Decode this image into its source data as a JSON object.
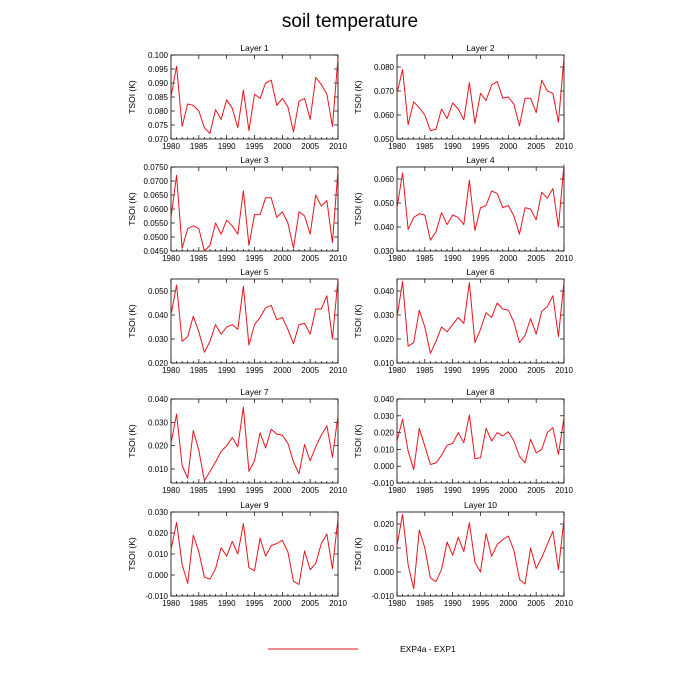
{
  "title": "soil temperature",
  "legend": {
    "label": "EXP4a - EXP1",
    "color": "#e8141c"
  },
  "x_ticks": [
    1980,
    1985,
    1990,
    1995,
    2000,
    2005,
    2010
  ],
  "chart_data": [
    {
      "type": "line",
      "title": "Layer 1",
      "ylabel": "TSOI  (K)",
      "xlim": [
        1980,
        2010
      ],
      "ylim": [
        0.07,
        0.1
      ],
      "yticks": [
        "0.070",
        "0.075",
        "0.080",
        "0.085",
        "0.090",
        "0.095",
        "0.100"
      ],
      "x": [
        1980,
        1981,
        1982,
        1983,
        1984,
        1985,
        1986,
        1987,
        1988,
        1989,
        1990,
        1991,
        1992,
        1993,
        1994,
        1995,
        1996,
        1997,
        1998,
        1999,
        2000,
        2001,
        2002,
        2003,
        2004,
        2005,
        2006,
        2007,
        2008,
        2009,
        2010
      ],
      "series": [
        {
          "values": [
            0.085,
            0.096,
            0.0745,
            0.0825,
            0.082,
            0.08,
            0.074,
            0.072,
            0.0805,
            0.077,
            0.084,
            0.081,
            0.074,
            0.0875,
            0.073,
            0.086,
            0.0845,
            0.09,
            0.091,
            0.082,
            0.0845,
            0.0815,
            0.0725,
            0.0835,
            0.0845,
            0.077,
            0.092,
            0.0895,
            0.086,
            0.0745,
            0.099
          ]
        }
      ]
    },
    {
      "type": "line",
      "title": "Layer 2",
      "ylabel": "TSOI  (K)",
      "xlim": [
        1980,
        2010
      ],
      "ylim": [
        0.05,
        0.085
      ],
      "yticks": [
        "0.050",
        "0.060",
        "0.070",
        "0.080"
      ],
      "x": [
        1980,
        1981,
        1982,
        1983,
        1984,
        1985,
        1986,
        1987,
        1988,
        1989,
        1990,
        1991,
        1992,
        1993,
        1994,
        1995,
        1996,
        1997,
        1998,
        1999,
        2000,
        2001,
        2002,
        2003,
        2004,
        2005,
        2006,
        2007,
        2008,
        2009,
        2010
      ],
      "series": [
        {
          "values": [
            0.069,
            0.079,
            0.056,
            0.0655,
            0.063,
            0.06,
            0.0535,
            0.054,
            0.0625,
            0.0585,
            0.065,
            0.0625,
            0.058,
            0.0735,
            0.0565,
            0.069,
            0.066,
            0.0725,
            0.074,
            0.067,
            0.0675,
            0.0645,
            0.0555,
            0.067,
            0.067,
            0.061,
            0.0745,
            0.07,
            0.069,
            0.057,
            0.084
          ]
        }
      ]
    },
    {
      "type": "line",
      "title": "Layer 3",
      "ylabel": "TSOI  (K)",
      "xlim": [
        1980,
        2010
      ],
      "ylim": [
        0.045,
        0.075
      ],
      "yticks": [
        "0.0450",
        "0.0500",
        "0.0550",
        "0.0600",
        "0.0650",
        "0.0700",
        "0.0750"
      ],
      "x": [
        1980,
        1981,
        1982,
        1983,
        1984,
        1985,
        1986,
        1987,
        1988,
        1989,
        1990,
        1991,
        1992,
        1993,
        1994,
        1995,
        1996,
        1997,
        1998,
        1999,
        2000,
        2001,
        2002,
        2003,
        2004,
        2005,
        2006,
        2007,
        2008,
        2009,
        2010
      ],
      "series": [
        {
          "values": [
            0.057,
            0.072,
            0.046,
            0.053,
            0.054,
            0.053,
            0.045,
            0.047,
            0.055,
            0.051,
            0.056,
            0.054,
            0.051,
            0.0665,
            0.047,
            0.058,
            0.058,
            0.064,
            0.064,
            0.057,
            0.059,
            0.055,
            0.046,
            0.059,
            0.0575,
            0.051,
            0.065,
            0.061,
            0.063,
            0.048,
            0.074
          ]
        }
      ]
    },
    {
      "type": "line",
      "title": "Layer 4",
      "ylabel": "TSOI  (K)",
      "xlim": [
        1980,
        2010
      ],
      "ylim": [
        0.03,
        0.065
      ],
      "yticks": [
        "0.030",
        "0.040",
        "0.050",
        "0.060"
      ],
      "x": [
        1980,
        1981,
        1982,
        1983,
        1984,
        1985,
        1986,
        1987,
        1988,
        1989,
        1990,
        1991,
        1992,
        1993,
        1994,
        1995,
        1996,
        1997,
        1998,
        1999,
        2000,
        2001,
        2002,
        2003,
        2004,
        2005,
        2006,
        2007,
        2008,
        2009,
        2010
      ],
      "series": [
        {
          "values": [
            0.048,
            0.0625,
            0.039,
            0.044,
            0.0455,
            0.045,
            0.0345,
            0.038,
            0.046,
            0.041,
            0.045,
            0.044,
            0.041,
            0.0595,
            0.0385,
            0.048,
            0.049,
            0.055,
            0.054,
            0.048,
            0.049,
            0.0445,
            0.037,
            0.048,
            0.0475,
            0.043,
            0.0545,
            0.052,
            0.056,
            0.04,
            0.066
          ]
        }
      ]
    },
    {
      "type": "line",
      "title": "Layer 5",
      "ylabel": "TSOI  (K)",
      "xlim": [
        1980,
        2010
      ],
      "ylim": [
        0.02,
        0.055
      ],
      "yticks": [
        "0.020",
        "0.030",
        "0.040",
        "0.050"
      ],
      "x": [
        1980,
        1981,
        1982,
        1983,
        1984,
        1985,
        1986,
        1987,
        1988,
        1989,
        1990,
        1991,
        1992,
        1993,
        1994,
        1995,
        1996,
        1997,
        1998,
        1999,
        2000,
        2001,
        2002,
        2003,
        2004,
        2005,
        2006,
        2007,
        2008,
        2009,
        2010
      ],
      "series": [
        {
          "values": [
            0.04,
            0.0525,
            0.029,
            0.031,
            0.0395,
            0.033,
            0.0245,
            0.029,
            0.036,
            0.032,
            0.035,
            0.036,
            0.034,
            0.052,
            0.0275,
            0.036,
            0.039,
            0.043,
            0.044,
            0.038,
            0.039,
            0.034,
            0.028,
            0.036,
            0.0365,
            0.032,
            0.0425,
            0.0425,
            0.048,
            0.03,
            0.055
          ]
        }
      ]
    },
    {
      "type": "line",
      "title": "Layer 6",
      "ylabel": "TSOI  (K)",
      "xlim": [
        1980,
        2010
      ],
      "ylim": [
        0.01,
        0.045
      ],
      "yticks": [
        "0.010",
        "0.020",
        "0.030",
        "0.040"
      ],
      "x": [
        1980,
        1981,
        1982,
        1983,
        1984,
        1985,
        1986,
        1987,
        1988,
        1989,
        1990,
        1991,
        1992,
        1993,
        1994,
        1995,
        1996,
        1997,
        1998,
        1999,
        2000,
        2001,
        2002,
        2003,
        2004,
        2005,
        2006,
        2007,
        2008,
        2009,
        2010
      ],
      "series": [
        {
          "values": [
            0.029,
            0.044,
            0.017,
            0.0185,
            0.032,
            0.025,
            0.014,
            0.019,
            0.025,
            0.023,
            0.026,
            0.029,
            0.0265,
            0.0435,
            0.0185,
            0.024,
            0.031,
            0.029,
            0.035,
            0.0325,
            0.032,
            0.027,
            0.0185,
            0.0215,
            0.0285,
            0.022,
            0.0315,
            0.0335,
            0.038,
            0.021,
            0.044
          ]
        }
      ]
    },
    {
      "type": "line",
      "title": "Layer 7",
      "ylabel": "TSOI  (K)",
      "xlim": [
        1980,
        2010
      ],
      "ylim": [
        0.004,
        0.04
      ],
      "yticks": [
        "0.010",
        "0.020",
        "0.030",
        "0.040"
      ],
      "x": [
        1980,
        1981,
        1982,
        1983,
        1984,
        1985,
        1986,
        1987,
        1988,
        1989,
        1990,
        1991,
        1992,
        1993,
        1994,
        1995,
        1996,
        1997,
        1998,
        1999,
        2000,
        2001,
        2002,
        2003,
        2004,
        2005,
        2006,
        2007,
        2008,
        2009,
        2010
      ],
      "series": [
        {
          "values": [
            0.021,
            0.0335,
            0.0115,
            0.006,
            0.0265,
            0.018,
            0.005,
            0.009,
            0.013,
            0.0175,
            0.02,
            0.0235,
            0.0195,
            0.0365,
            0.009,
            0.0135,
            0.0255,
            0.019,
            0.027,
            0.025,
            0.0245,
            0.021,
            0.013,
            0.008,
            0.0205,
            0.0135,
            0.0195,
            0.0245,
            0.0285,
            0.015,
            0.033
          ]
        }
      ]
    },
    {
      "type": "line",
      "title": "Layer 8",
      "ylabel": "TSOI  (K)",
      "xlim": [
        1980,
        2010
      ],
      "ylim": [
        -0.01,
        0.04
      ],
      "yticks": [
        "-0.010",
        "0.000",
        "0.010",
        "0.020",
        "0.030",
        "0.040"
      ],
      "x": [
        1980,
        1981,
        1982,
        1983,
        1984,
        1985,
        1986,
        1987,
        1988,
        1989,
        1990,
        1991,
        1992,
        1993,
        1994,
        1995,
        1996,
        1997,
        1998,
        1999,
        2000,
        2001,
        2002,
        2003,
        2004,
        2005,
        2006,
        2007,
        2008,
        2009,
        2010
      ],
      "series": [
        {
          "values": [
            0.015,
            0.028,
            0.009,
            -0.002,
            0.0225,
            0.012,
            0.001,
            0.002,
            0.0065,
            0.0125,
            0.0135,
            0.02,
            0.014,
            0.0305,
            0.0045,
            0.005,
            0.0225,
            0.015,
            0.02,
            0.018,
            0.0205,
            0.015,
            0.006,
            0.002,
            0.016,
            0.008,
            0.01,
            0.02,
            0.023,
            0.007,
            0.029
          ]
        }
      ]
    },
    {
      "type": "line",
      "title": "Layer 9",
      "ylabel": "TSOI  (K)",
      "xlim": [
        1980,
        2010
      ],
      "ylim": [
        -0.01,
        0.03
      ],
      "yticks": [
        "-0.010",
        "0.000",
        "0.010",
        "0.020",
        "0.030"
      ],
      "x": [
        1980,
        1981,
        1982,
        1983,
        1984,
        1985,
        1986,
        1987,
        1988,
        1989,
        1990,
        1991,
        1992,
        1993,
        1994,
        1995,
        1996,
        1997,
        1998,
        1999,
        2000,
        2001,
        2002,
        2003,
        2004,
        2005,
        2006,
        2007,
        2008,
        2009,
        2010
      ],
      "series": [
        {
          "values": [
            0.012,
            0.025,
            0.005,
            -0.004,
            0.019,
            0.011,
            -0.001,
            -0.002,
            0.003,
            0.013,
            0.009,
            0.016,
            0.01,
            0.0245,
            0.0035,
            0.002,
            0.0175,
            0.009,
            0.014,
            0.015,
            0.0165,
            0.011,
            -0.003,
            -0.0045,
            0.0115,
            0.0025,
            0.0055,
            0.015,
            0.0195,
            0.003,
            0.027
          ]
        }
      ]
    },
    {
      "type": "line",
      "title": "Layer 10",
      "ylabel": "TSOI  (K)",
      "xlim": [
        1980,
        2010
      ],
      "ylim": [
        -0.01,
        0.025
      ],
      "yticks": [
        "-0.010",
        "0.000",
        "0.010",
        "0.020"
      ],
      "x": [
        1980,
        1981,
        1982,
        1983,
        1984,
        1985,
        1986,
        1987,
        1988,
        1989,
        1990,
        1991,
        1992,
        1993,
        1994,
        1995,
        1996,
        1997,
        1998,
        1999,
        2000,
        2001,
        2002,
        2003,
        2004,
        2005,
        2006,
        2007,
        2008,
        2009,
        2010
      ],
      "series": [
        {
          "values": [
            0.011,
            0.024,
            0.003,
            -0.007,
            0.0175,
            0.01,
            -0.0025,
            -0.004,
            0.001,
            0.0125,
            0.007,
            0.0145,
            0.0085,
            0.0205,
            0.004,
            0.0,
            0.016,
            0.0065,
            0.0115,
            0.0135,
            0.015,
            0.009,
            -0.003,
            -0.005,
            0.01,
            0.0015,
            0.006,
            0.0115,
            0.017,
            0.001,
            0.022
          ]
        }
      ]
    }
  ]
}
